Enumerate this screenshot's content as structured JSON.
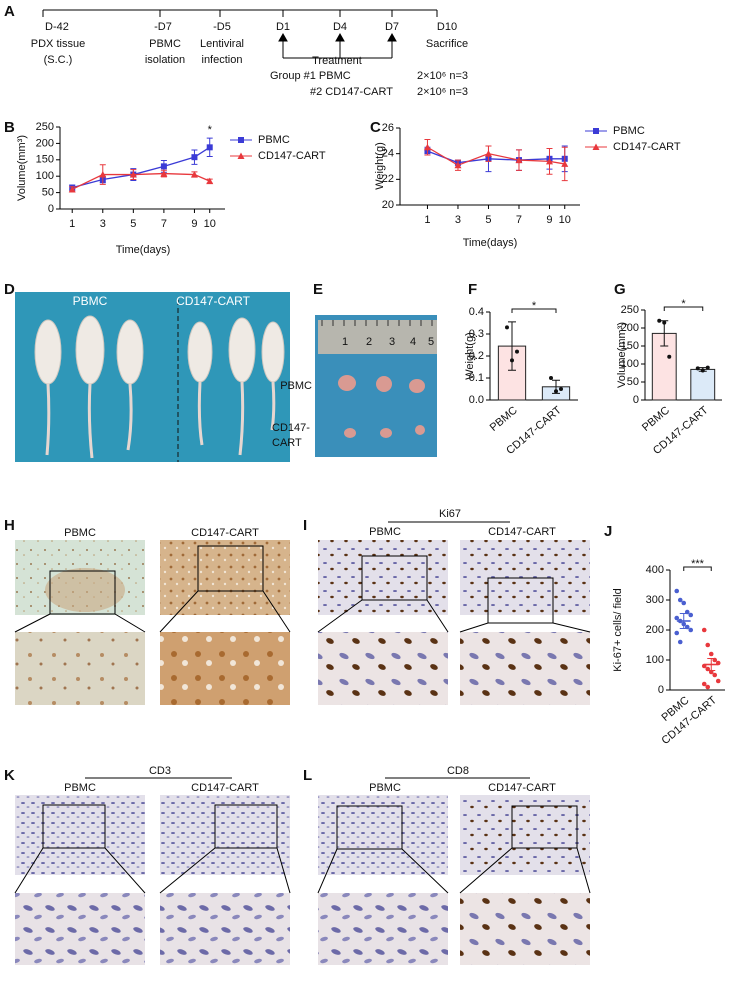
{
  "panel_labels": [
    "A",
    "B",
    "C",
    "D",
    "E",
    "F",
    "G",
    "H",
    "I",
    "J",
    "K",
    "L"
  ],
  "timeline": {
    "events": [
      {
        "day": "D-42",
        "lines": [
          "PDX tissue",
          "(S.C.)"
        ]
      },
      {
        "day": "-D7",
        "lines": [
          "PBMC",
          "isolation"
        ]
      },
      {
        "day": "-D5",
        "lines": [
          "Lentiviral",
          "infection"
        ]
      },
      {
        "day": "D1"
      },
      {
        "day": "D4"
      },
      {
        "day": "D7"
      },
      {
        "day": "D10",
        "lines": [
          "Sacrifice"
        ]
      }
    ],
    "treatment": "Treatment",
    "groups": [
      {
        "name": "Group #1 PBMC",
        "dose": "2×10⁶ n=3"
      },
      {
        "name": "#2 CD147-CART",
        "dose": "2×10⁶ n=3"
      }
    ]
  },
  "chart_data": [
    {
      "type": "line",
      "xlabel": "Time(days)",
      "ylabel": "Volume(mm³)",
      "x": [
        1,
        3,
        5,
        7,
        9,
        10
      ],
      "xticks": [
        1,
        3,
        5,
        7,
        9,
        10
      ],
      "xlim": [
        0.2,
        11
      ],
      "ylim": [
        0,
        250
      ],
      "yticks": [
        0,
        50,
        100,
        150,
        200,
        250
      ],
      "annotation": "*",
      "series": [
        {
          "name": "PBMC",
          "color": "#3b3bd6",
          "marker": "square",
          "values": [
            65,
            90,
            105,
            130,
            158,
            188
          ],
          "errors": [
            8,
            10,
            18,
            18,
            22,
            28
          ]
        },
        {
          "name": "CD147-CART",
          "color": "#e8383d",
          "marker": "triangle",
          "values": [
            60,
            105,
            105,
            108,
            105,
            85
          ],
          "errors": [
            8,
            30,
            15,
            10,
            8,
            6
          ]
        }
      ]
    },
    {
      "type": "line",
      "xlabel": "Time(days)",
      "ylabel": "Weight(g)",
      "x": [
        1,
        3,
        5,
        7,
        9,
        10
      ],
      "xticks": [
        1,
        3,
        5,
        7,
        9,
        10
      ],
      "xlim": [
        -0.8,
        11
      ],
      "ylim": [
        20,
        26
      ],
      "yticks": [
        20,
        22,
        24,
        26
      ],
      "series": [
        {
          "name": "PBMC",
          "color": "#3b3bd6",
          "marker": "square",
          "values": [
            24.2,
            23.3,
            23.6,
            23.5,
            23.6,
            23.6
          ],
          "errors": [
            0.3,
            0.2,
            1.0,
            0.8,
            0.8,
            1.0
          ]
        },
        {
          "name": "CD147-CART",
          "color": "#e8383d",
          "marker": "triangle",
          "values": [
            24.5,
            23.1,
            24.0,
            23.5,
            23.4,
            23.2
          ],
          "errors": [
            0.6,
            0.4,
            0.6,
            0.8,
            1.0,
            1.3
          ]
        }
      ]
    },
    {
      "type": "bar",
      "ylabel": "Weight(g)",
      "categories": [
        "PBMC",
        "CD147-CART"
      ],
      "values": [
        0.245,
        0.06
      ],
      "errors": [
        0.11,
        0.03
      ],
      "colors": [
        "#fde3e3",
        "#dceaf8"
      ],
      "points": [
        [
          0.33,
          0.18,
          0.22
        ],
        [
          0.1,
          0.04,
          0.05
        ]
      ],
      "ylim": [
        0,
        0.4
      ],
      "yticks": [
        {
          "value": 0,
          "label": "0.0"
        },
        0.1,
        0.2,
        0.3,
        0.4
      ],
      "annotation": "*"
    },
    {
      "type": "bar",
      "ylabel": "Volume(mm³)",
      "categories": [
        "PBMC",
        "CD147-CART"
      ],
      "values": [
        185,
        85
      ],
      "errors": [
        35,
        5
      ],
      "colors": [
        "#fde3e3",
        "#dceaf8"
      ],
      "points": [
        [
          220,
          215,
          120
        ],
        [
          88,
          82,
          90
        ]
      ],
      "ylim": [
        0,
        250
      ],
      "yticks": [
        0,
        50,
        100,
        150,
        200,
        250
      ],
      "annotation": "*"
    },
    {
      "type": "scatter",
      "ylabel": "Ki-67+ cells/ field",
      "categories": [
        "PBMC",
        "CD147-CART"
      ],
      "values": [
        230,
        85
      ],
      "errors": [
        25,
        20
      ],
      "colors": [
        "#4a5fd0",
        "#e8383d"
      ],
      "points": [
        [
          330,
          300,
          290,
          260,
          250,
          240,
          230,
          220,
          210,
          200,
          190,
          160
        ],
        [
          200,
          150,
          120,
          100,
          90,
          80,
          70,
          60,
          50,
          30,
          20,
          10
        ]
      ],
      "ylim": [
        0,
        400
      ],
      "yticks": [
        0,
        100,
        200,
        300,
        400
      ],
      "annotation": "***"
    }
  ],
  "panel_D": {
    "labels": [
      "PBMC",
      "CD147-CART"
    ]
  },
  "panel_E": {
    "ruler": [
      1,
      2,
      3,
      4,
      5
    ],
    "rows": [
      {
        "lines": [
          "PBMC"
        ]
      },
      {
        "lines": [
          "CD147-",
          "CART"
        ]
      }
    ]
  },
  "panel_H": {
    "columns": [
      "PBMC",
      "CD147-CART"
    ]
  },
  "panel_I": {
    "stain": "Ki67",
    "columns": [
      "PBMC",
      "CD147-CART"
    ]
  },
  "panel_K": {
    "stain": "CD3",
    "columns": [
      "PBMC",
      "CD147-CART"
    ]
  },
  "panel_L": {
    "stain": "CD8",
    "columns": [
      "PBMC",
      "CD147-CART"
    ]
  }
}
